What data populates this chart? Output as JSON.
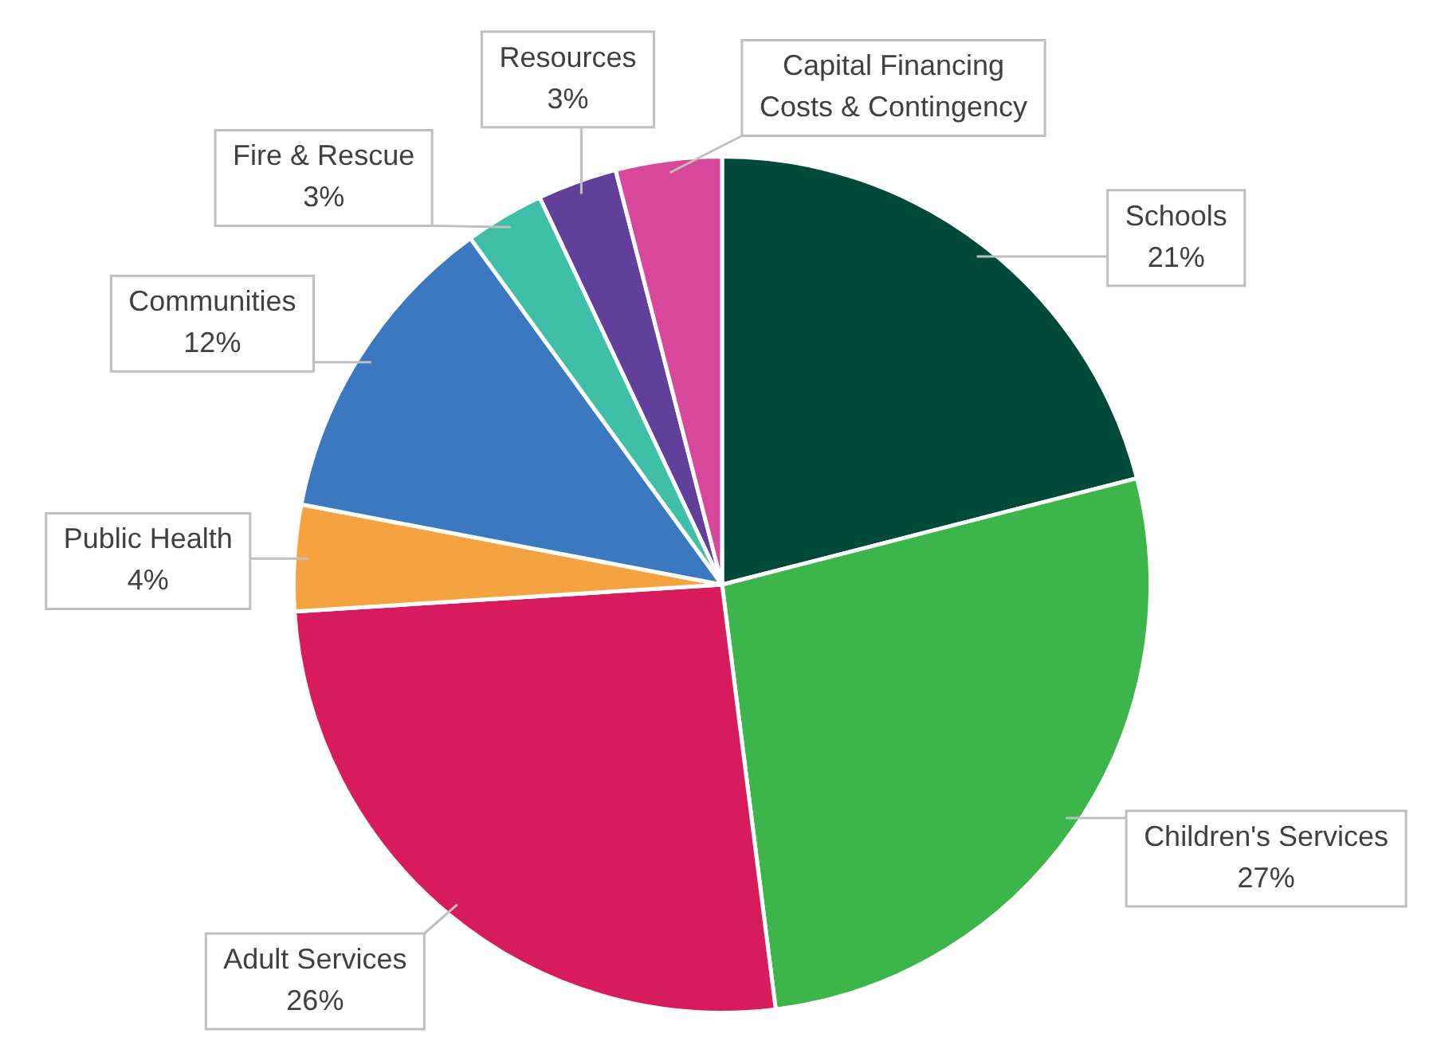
{
  "chart_data": {
    "type": "pie",
    "categories": [
      "Schools",
      "Children's Services",
      "Adult Services",
      "Public Health",
      "Communities",
      "Fire & Rescue",
      "Resources",
      "Capital Financing Costs & Contingency"
    ],
    "values": [
      21,
      27,
      26,
      4,
      12,
      3,
      3,
      4
    ],
    "value_labels": [
      "21%",
      "27%",
      "26%",
      "4%",
      "12%",
      "3%",
      "3%",
      null
    ],
    "colors": [
      "#004a3a",
      "#3cb54a",
      "#d81b5c",
      "#f5a340",
      "#3b78c0",
      "#40bfa8",
      "#613f9a",
      "#d9479a"
    ],
    "legend": false
  }
}
